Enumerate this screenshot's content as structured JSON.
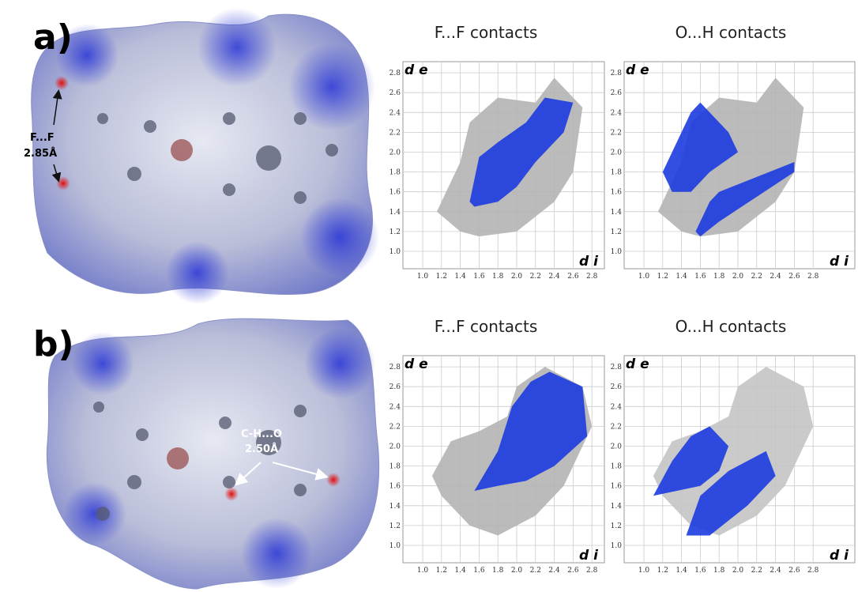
{
  "panels": [
    {
      "label": "a)",
      "annotation": [
        "F...F",
        "2.85Å"
      ],
      "plots": [
        {
          "title": "F...F contacts",
          "y_axis_label": "d e",
          "x_axis_label": "d i"
        },
        {
          "title": "O...H contacts",
          "y_axis_label": "d e",
          "x_axis_label": "d i"
        }
      ]
    },
    {
      "label": "b)",
      "annotation": [
        "C-H...O",
        "2.50Å"
      ],
      "plots": [
        {
          "title": "F...F contacts",
          "y_axis_label": "d e",
          "x_axis_label": "d i"
        },
        {
          "title": "O...H contacts",
          "y_axis_label": "d e",
          "x_axis_label": "d i"
        }
      ]
    }
  ],
  "axis_ticks": {
    "x": [
      "1.0",
      "1.2",
      "1.4",
      "1.6",
      "1.8",
      "2.0",
      "2.2",
      "2.4",
      "2.6",
      "2.8"
    ],
    "y": [
      "1.0",
      "1.2",
      "1.4",
      "1.6",
      "1.8",
      "2.0",
      "2.2",
      "2.4",
      "2.6",
      "2.8"
    ]
  }
}
